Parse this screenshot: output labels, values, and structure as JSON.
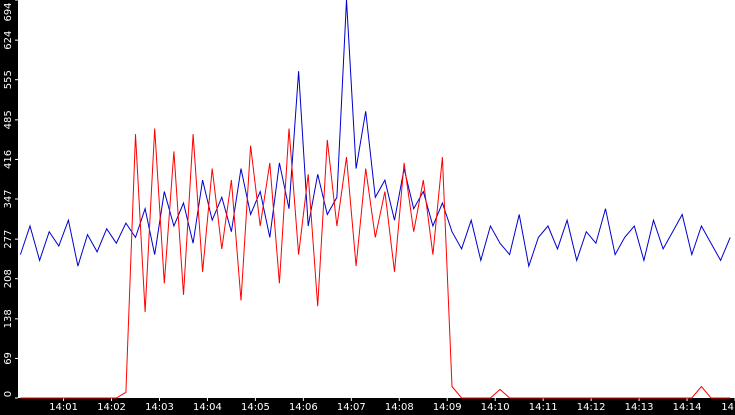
{
  "chart_data": {
    "type": "line",
    "x": [
      0.1,
      0.3,
      0.5,
      0.7,
      0.9,
      1.1,
      1.3,
      1.5,
      1.7,
      1.9,
      2.1,
      2.3,
      2.5,
      2.7,
      2.9,
      3.1,
      3.3,
      3.5,
      3.7,
      3.9,
      4.1,
      4.3,
      4.5,
      4.7,
      4.9,
      5.1,
      5.3,
      5.5,
      5.7,
      5.9,
      6.1,
      6.3,
      6.5,
      6.7,
      6.9,
      7.1,
      7.3,
      7.5,
      7.7,
      7.9,
      8.1,
      8.3,
      8.5,
      8.7,
      8.9,
      9.1,
      9.3,
      9.5,
      9.7,
      9.9,
      10.1,
      10.3,
      10.5,
      10.7,
      10.9,
      11.1,
      11.3,
      11.5,
      11.7,
      11.9,
      12.1,
      12.3,
      12.5,
      12.7,
      12.9,
      13.1,
      13.3,
      13.5,
      13.7,
      13.9,
      14.1,
      14.3,
      14.5,
      14.7,
      14.9
    ],
    "series": [
      {
        "color": "#0000cc",
        "values": [
          250,
          300,
          240,
          290,
          265,
          310,
          230,
          285,
          255,
          295,
          270,
          305,
          280,
          330,
          250,
          360,
          300,
          340,
          270,
          380,
          310,
          350,
          290,
          400,
          320,
          360,
          280,
          410,
          330,
          570,
          300,
          390,
          320,
          350,
          694,
          400,
          500,
          350,
          380,
          310,
          400,
          330,
          360,
          300,
          340,
          290,
          260,
          310,
          240,
          300,
          270,
          250,
          320,
          230,
          280,
          300,
          260,
          310,
          240,
          290,
          270,
          330,
          250,
          280,
          300,
          240,
          310,
          260,
          290,
          320,
          250,
          300,
          270,
          240,
          280
        ]
      },
      {
        "color": "#ff0000",
        "values": [
          0,
          0,
          0,
          0,
          0,
          0,
          0,
          0,
          0,
          0,
          0,
          10,
          460,
          150,
          470,
          200,
          430,
          180,
          460,
          220,
          400,
          260,
          380,
          170,
          440,
          300,
          410,
          200,
          470,
          250,
          390,
          160,
          450,
          300,
          420,
          230,
          400,
          280,
          360,
          220,
          410,
          290,
          380,
          250,
          420,
          20,
          0,
          0,
          0,
          0,
          15,
          0,
          0,
          0,
          0,
          0,
          0,
          0,
          0,
          0,
          0,
          0,
          0,
          0,
          0,
          0,
          0,
          0,
          0,
          0,
          0,
          20,
          0,
          0,
          0
        ]
      }
    ],
    "xlim": [
      0.05,
      15
    ],
    "xticks": [
      {
        "value": 1,
        "label": "14:01"
      },
      {
        "value": 2,
        "label": "14:02"
      },
      {
        "value": 3,
        "label": "14:03"
      },
      {
        "value": 4,
        "label": "14:04"
      },
      {
        "value": 5,
        "label": "14:05"
      },
      {
        "value": 6,
        "label": "14:06"
      },
      {
        "value": 7,
        "label": "14:07"
      },
      {
        "value": 8,
        "label": "14:08"
      },
      {
        "value": 9,
        "label": "14:09"
      },
      {
        "value": 10,
        "label": "14:10"
      },
      {
        "value": 11,
        "label": "14:11"
      },
      {
        "value": 12,
        "label": "14:12"
      },
      {
        "value": 13,
        "label": "14:13"
      },
      {
        "value": 14,
        "label": "14:14"
      },
      {
        "value": 15,
        "label": "14"
      }
    ],
    "ylim": [
      0,
      694
    ],
    "yticks": [
      0,
      69,
      138,
      208,
      277,
      347,
      416,
      485,
      555,
      624,
      694
    ]
  }
}
